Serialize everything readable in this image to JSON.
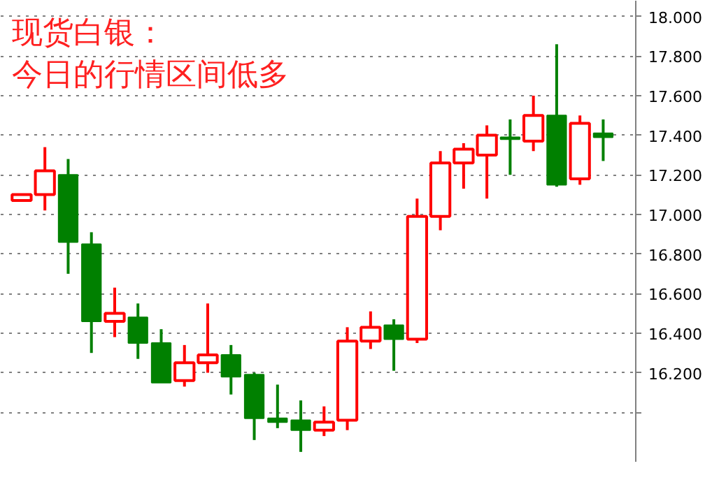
{
  "chart_data": {
    "type": "candlestick",
    "title": "现货白银：",
    "subtitle": "今日的行情区间低多",
    "categories": [
      null,
      null,
      null,
      null,
      null,
      null,
      null,
      null,
      null,
      null,
      null,
      null,
      null,
      null,
      null,
      null,
      null,
      null,
      null,
      null,
      null,
      null,
      null,
      null,
      null,
      null
    ],
    "ohlc": [
      [
        17.07,
        17.1,
        17.07,
        17.1
      ],
      [
        17.1,
        17.34,
        17.02,
        17.22
      ],
      [
        17.2,
        17.28,
        16.7,
        16.86
      ],
      [
        16.85,
        16.91,
        16.3,
        16.46
      ],
      [
        16.46,
        16.63,
        16.38,
        16.5
      ],
      [
        16.48,
        16.55,
        16.27,
        16.35
      ],
      [
        16.35,
        16.42,
        16.15,
        16.15
      ],
      [
        16.16,
        16.34,
        16.13,
        16.25
      ],
      [
        16.25,
        16.55,
        16.2,
        16.29
      ],
      [
        16.29,
        16.34,
        16.09,
        16.18
      ],
      [
        16.19,
        16.2,
        15.86,
        15.97
      ],
      [
        15.97,
        16.14,
        15.92,
        15.95
      ],
      [
        15.96,
        16.06,
        15.8,
        15.91
      ],
      [
        15.91,
        16.03,
        15.88,
        15.95
      ],
      [
        15.96,
        16.43,
        15.91,
        16.36
      ],
      [
        16.36,
        16.51,
        16.32,
        16.43
      ],
      [
        16.44,
        16.47,
        16.21,
        16.37
      ],
      [
        16.37,
        17.08,
        16.35,
        16.99
      ],
      [
        16.99,
        17.32,
        16.92,
        17.26
      ],
      [
        17.26,
        17.36,
        17.13,
        17.33
      ],
      [
        17.3,
        17.45,
        17.08,
        17.4
      ],
      [
        17.39,
        17.48,
        17.2,
        17.38
      ],
      [
        17.37,
        17.6,
        17.32,
        17.5
      ],
      [
        17.5,
        17.86,
        17.14,
        17.15
      ],
      [
        17.18,
        17.5,
        17.15,
        17.46
      ],
      [
        17.41,
        17.48,
        17.27,
        17.39
      ]
    ],
    "colors": [
      "#ff0000",
      "#ff0000",
      "#008000",
      "#008000",
      "#ff0000",
      "#008000",
      "#008000",
      "#ff0000",
      "#ff0000",
      "#008000",
      "#008000",
      "#008000",
      "#008000",
      "#ff0000",
      "#ff0000",
      "#ff0000",
      "#008000",
      "#ff0000",
      "#ff0000",
      "#ff0000",
      "#ff0000",
      "#008000",
      "#ff0000",
      "#008000",
      "#ff0000",
      "#008000"
    ],
    "ylim": [
      15.75,
      18.08
    ],
    "yticks": [
      {
        "value": 16.0,
        "label": null
      },
      {
        "value": 16.2,
        "label": "16.200"
      },
      {
        "value": 16.4,
        "label": "16.400"
      },
      {
        "value": 16.6,
        "label": "16.600"
      },
      {
        "value": 16.8,
        "label": "16.800"
      },
      {
        "value": 17.0,
        "label": "17.000"
      },
      {
        "value": 17.2,
        "label": "17.200"
      },
      {
        "value": 17.4,
        "label": "17.400"
      },
      {
        "value": 17.6,
        "label": "17.600"
      },
      {
        "value": 17.8,
        "label": "17.800"
      },
      {
        "value": 18.0,
        "label": "18.000"
      }
    ],
    "grid": "y",
    "tick_labels": "y"
  }
}
